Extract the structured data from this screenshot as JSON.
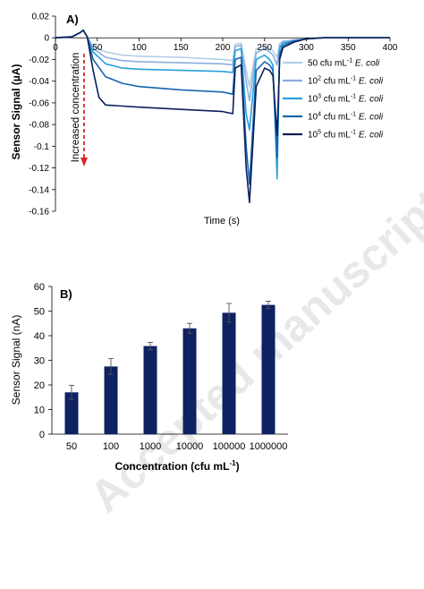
{
  "watermark": "Accepted manuscript",
  "chart_data": [
    {
      "type": "line",
      "panel_label": "A)",
      "xlabel": "Time (s)",
      "ylabel": "Sensor Signal (µA)",
      "xlim": [
        0,
        400
      ],
      "ylim": [
        -0.16,
        0.02
      ],
      "xticks": [
        0,
        50,
        100,
        150,
        200,
        250,
        300,
        350,
        400
      ],
      "yticks": [
        0.02,
        0,
        -0.02,
        -0.04,
        -0.06,
        -0.08,
        -0.1,
        -0.12,
        -0.14,
        -0.16
      ],
      "annotation": "Increased concentration",
      "legend_position": "right",
      "series": [
        {
          "name": "50 cfu mL-1 E. coli",
          "legend_num": "50",
          "legend_sup": "",
          "legend_unit": " cfu mL",
          "legend_unit_sup": "-1",
          "legend_species": " E. coli",
          "color": "#b4cde8",
          "x": [
            0,
            20,
            30,
            33,
            38,
            45,
            60,
            80,
            100,
            150,
            200,
            212,
            215,
            222,
            228,
            232,
            240,
            250,
            256,
            260,
            265,
            268,
            272,
            285,
            300,
            320,
            350,
            400
          ],
          "y": [
            0,
            0.001,
            0.005,
            0.007,
            0.001,
            -0.008,
            -0.013,
            -0.016,
            -0.017,
            -0.018,
            -0.02,
            -0.021,
            -0.006,
            -0.005,
            -0.03,
            -0.045,
            -0.01,
            -0.008,
            -0.01,
            -0.012,
            -0.018,
            -0.005,
            -0.003,
            -0.002,
            -0.001,
            0,
            0,
            0
          ]
        },
        {
          "name": "10^2 cfu mL-1 E. coli",
          "legend_num": "10",
          "legend_sup": "2",
          "legend_unit": " cfu mL",
          "legend_unit_sup": "-1",
          "legend_species": " E. coli",
          "color": "#8aaee0",
          "x": [
            0,
            20,
            30,
            33,
            38,
            45,
            60,
            80,
            100,
            150,
            200,
            212,
            215,
            222,
            228,
            232,
            240,
            250,
            256,
            260,
            265,
            268,
            272,
            285,
            300,
            320,
            350,
            400
          ],
          "y": [
            0,
            0.001,
            0.005,
            0.007,
            0.001,
            -0.01,
            -0.018,
            -0.021,
            -0.022,
            -0.023,
            -0.024,
            -0.025,
            -0.008,
            -0.007,
            -0.04,
            -0.058,
            -0.014,
            -0.01,
            -0.013,
            -0.016,
            -0.025,
            -0.008,
            -0.004,
            -0.002,
            -0.001,
            0,
            0,
            0
          ]
        },
        {
          "name": "10^3 cfu mL-1 E. coli",
          "legend_num": "10",
          "legend_sup": "3",
          "legend_unit": " cfu mL",
          "legend_unit_sup": "-1",
          "legend_species": " E. coli",
          "color": "#26a0da",
          "x": [
            0,
            20,
            30,
            33,
            38,
            45,
            60,
            80,
            100,
            150,
            200,
            212,
            215,
            222,
            228,
            232,
            240,
            250,
            256,
            260,
            265,
            268,
            272,
            285,
            300,
            320,
            350,
            400
          ],
          "y": [
            0,
            0.001,
            0.005,
            0.007,
            0.001,
            -0.013,
            -0.024,
            -0.028,
            -0.029,
            -0.03,
            -0.031,
            -0.032,
            -0.012,
            -0.01,
            -0.07,
            -0.085,
            -0.02,
            -0.016,
            -0.02,
            -0.025,
            -0.13,
            -0.01,
            -0.005,
            -0.003,
            -0.001,
            0,
            0,
            0
          ]
        },
        {
          "name": "10^4 cfu mL-1 E. coli",
          "legend_num": "10",
          "legend_sup": "4",
          "legend_unit": " cfu mL",
          "legend_unit_sup": "-1",
          "legend_species": " E. coli",
          "color": "#1765ad",
          "x": [
            0,
            20,
            30,
            33,
            38,
            45,
            60,
            80,
            100,
            150,
            200,
            212,
            215,
            222,
            228,
            232,
            240,
            250,
            256,
            260,
            265,
            268,
            272,
            285,
            300,
            320,
            350,
            400
          ],
          "y": [
            0,
            0.001,
            0.005,
            0.007,
            0.001,
            -0.02,
            -0.036,
            -0.042,
            -0.045,
            -0.048,
            -0.05,
            -0.052,
            -0.02,
            -0.018,
            -0.1,
            -0.135,
            -0.03,
            -0.022,
            -0.025,
            -0.03,
            -0.11,
            -0.015,
            -0.007,
            -0.003,
            -0.001,
            0,
            0,
            0
          ]
        },
        {
          "name": "10^5 cfu mL-1 E. coli",
          "legend_num": "10",
          "legend_sup": "5",
          "legend_unit": " cfu mL",
          "legend_unit_sup": "-1",
          "legend_species": " E. coli",
          "color": "#0c1f5c",
          "x": [
            0,
            20,
            30,
            33,
            38,
            45,
            52,
            60,
            80,
            100,
            150,
            200,
            212,
            215,
            222,
            228,
            232,
            240,
            250,
            256,
            260,
            265,
            268,
            272,
            285,
            300,
            320,
            350,
            400
          ],
          "y": [
            0,
            0.001,
            0.005,
            0.007,
            0.001,
            -0.03,
            -0.055,
            -0.062,
            -0.063,
            -0.064,
            -0.066,
            -0.068,
            -0.07,
            -0.028,
            -0.025,
            -0.12,
            -0.152,
            -0.045,
            -0.028,
            -0.03,
            -0.035,
            -0.09,
            -0.02,
            -0.009,
            -0.004,
            -0.001,
            0,
            0,
            0
          ]
        }
      ]
    },
    {
      "type": "bar",
      "panel_label": "B)",
      "xlabel": "Concentration (cfu mL",
      "xlabel_sup": "-1",
      "xlabel_end": ")",
      "ylabel": "Sensor Signal (nA)",
      "ylim": [
        0,
        60
      ],
      "yticks": [
        0,
        10,
        20,
        30,
        40,
        50,
        60
      ],
      "categories": [
        "50",
        "100",
        "1000",
        "10000",
        "100000",
        "1000000"
      ],
      "values": [
        17,
        27.5,
        35.8,
        43,
        49.3,
        52.5
      ],
      "errors": [
        2.8,
        3.2,
        1.5,
        2,
        3.8,
        1.5
      ],
      "color": "#0e2262",
      "grid": false
    }
  ]
}
